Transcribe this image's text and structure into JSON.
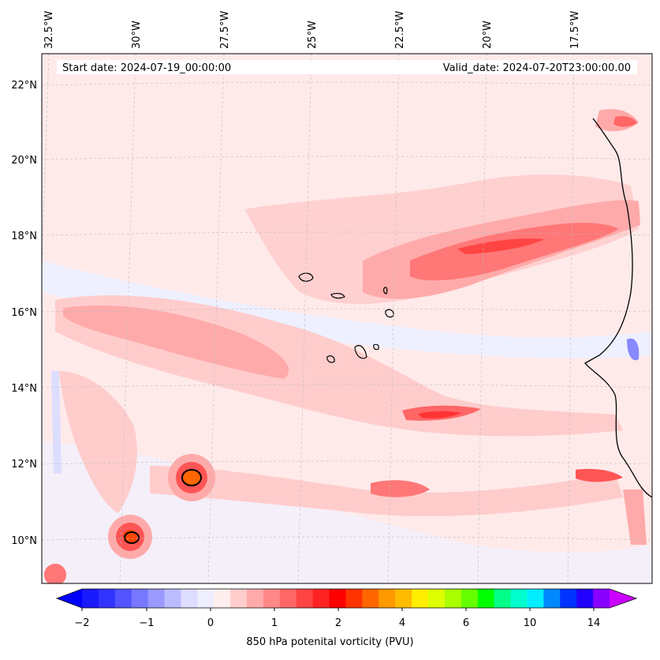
{
  "map": {
    "start_date": "Start date: 2024-07-19_00:00:00",
    "valid_date": "Valid_date: 2024-07-20T23:00:00.00",
    "lon_labels": [
      "32.5°W",
      "30°W",
      "27.5°W",
      "25°W",
      "22.5°W",
      "20°W",
      "17.5°W"
    ],
    "lat_labels": [
      "22°N",
      "20°N",
      "18°N",
      "16°N",
      "14°N",
      "12°N",
      "10°N"
    ],
    "variable": "850 hPa potential vorticity",
    "colormap": "bwr-to-rainbow",
    "contour_color": "#000000"
  },
  "colorbar": {
    "title": "850 hPa potenital vorticity (PVU)",
    "tick_labels": [
      "−2",
      "−1",
      "0",
      "1",
      "2",
      "4",
      "6",
      "10",
      "14"
    ],
    "colors": [
      "#1a1aff",
      "#3333ff",
      "#5555ff",
      "#7777ff",
      "#9999ff",
      "#bbbbff",
      "#ddddff",
      "#eeeeff",
      "#ffeeee",
      "#ffcccc",
      "#ffaaaa",
      "#ff8888",
      "#ff6666",
      "#ff4444",
      "#ff2222",
      "#ff0000",
      "#ff3300",
      "#ff6600",
      "#ff9900",
      "#ffbb00",
      "#ffee00",
      "#ddff00",
      "#aaff00",
      "#66ff00",
      "#00ff00",
      "#00ff88",
      "#00ffcc",
      "#00eeff",
      "#0088ff",
      "#0033ff",
      "#2200ff",
      "#8800ff"
    ],
    "under_color": "#0000ff",
    "over_color": "#cc00ff"
  }
}
